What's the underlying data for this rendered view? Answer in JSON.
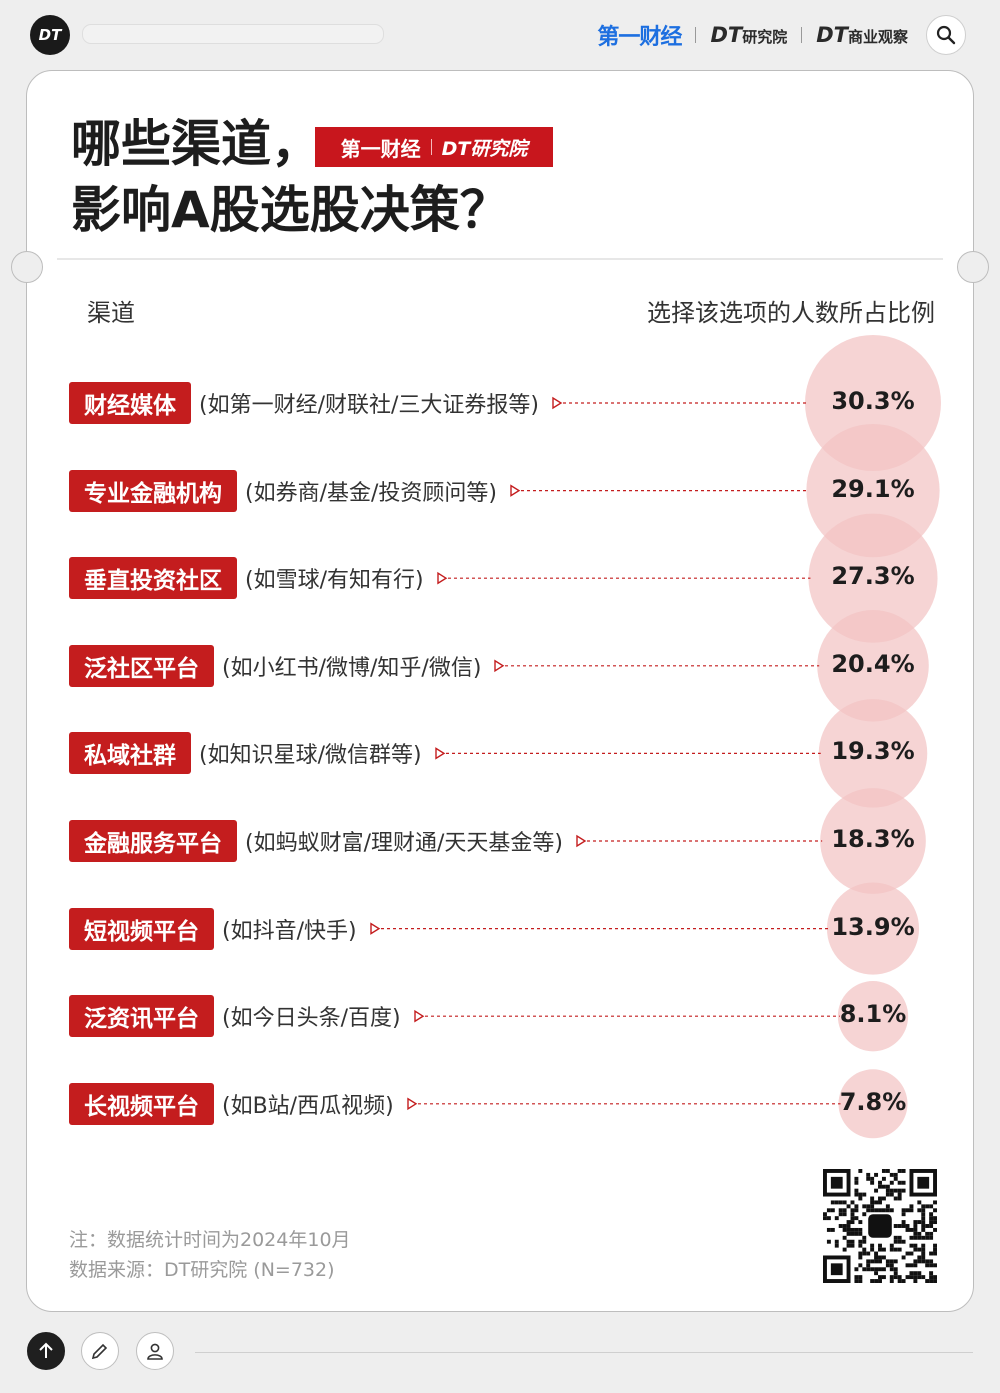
{
  "header": {
    "badge": "DT",
    "brand_1": "第一财经",
    "brand_2_prefix": "DT",
    "brand_2_suffix": "研究院",
    "brand_3_prefix": "DT",
    "brand_3_suffix": "商业观察"
  },
  "card": {
    "title_line1": "哪些渠道，",
    "title_line2": "影响A股选股决策？",
    "title_logo_a": "第一财经",
    "title_logo_b": "DT研究院",
    "col_left": "渠道",
    "col_right": "选择该选项的人数所占比例"
  },
  "chart_data": {
    "type": "bubble",
    "unit": "%",
    "categories": [
      "财经媒体",
      "专业金融机构",
      "垂直投资社区",
      "泛社区平台",
      "私域社群",
      "金融服务平台",
      "短视频平台",
      "泛资讯平台",
      "长视频平台"
    ],
    "examples": [
      "(如第一财经/财联社/三大证券报等)",
      "(如券商/基金/投资顾问等)",
      "(如雪球/有知有行)",
      "(如小红书/微博/知乎/微信)",
      "(如知识星球/微信群等)",
      "(如蚂蚁财富/理财通/天天基金等)",
      "(如抖音/快手)",
      "(如今日头条/百度)",
      "(如B站/西瓜视频)"
    ],
    "values": [
      30.3,
      29.1,
      27.3,
      20.4,
      19.3,
      18.3,
      13.9,
      8.1,
      7.8
    ],
    "labels": [
      "30.3%",
      "29.1%",
      "27.3%",
      "20.4%",
      "19.3%",
      "18.3%",
      "13.9%",
      "8.1%",
      "7.8%"
    ]
  },
  "notes": {
    "line1": "注：数据统计时间为2024年10月",
    "line2": "数据来源：DT研究院 (N=732)"
  },
  "colors": {
    "accent": "#c41d1e",
    "bubble": "#f3c3c3",
    "dash": "#c41d1e"
  }
}
